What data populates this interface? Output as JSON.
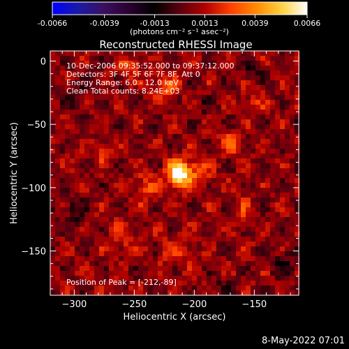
{
  "footer": {
    "timestamp": "8-May-2022 07:01"
  },
  "colorbar": {
    "ticks": [
      "-0.0066",
      "-0.0039",
      "-0.0013",
      "0.0013",
      "0.0039",
      "0.0066"
    ],
    "values": [
      -0.0066,
      -0.0039,
      -0.0013,
      0.0013,
      0.0039,
      0.0066
    ],
    "unit_label": "(photons cm⁻² s⁻¹ asec⁻²)",
    "range": [
      -0.0066,
      0.0066
    ],
    "colors": [
      "#0000ff",
      "#1a1aa8",
      "#3a1060",
      "#2a0030",
      "#000000",
      "#5a0010",
      "#b00000",
      "#ff4000",
      "#ff8a00",
      "#ffd040",
      "#ffffff"
    ]
  },
  "chart_data": {
    "type": "heatmap",
    "title": "Reconstructed RHESSI Image",
    "xlabel": "Heliocentric X (arcsec)",
    "ylabel": "Heliocentric Y (arcsec)",
    "xlim": [
      -320,
      -113
    ],
    "ylim": [
      -185,
      8
    ],
    "xticks": [
      -300,
      -250,
      -200,
      -150
    ],
    "yticks": [
      0,
      -50,
      -100,
      -150
    ],
    "info_lines": [
      "10-Dec-2006 09:35:52.000 to 09:37:12.000",
      "Detectors: 3F 4F 5F 6F 7F 8F, Att 0",
      "Energy Range: 6.0 - 12.0 keV",
      "Clean     Total counts: 8.24E+03"
    ],
    "peak_text": "Position of Peak = [-212,-89]",
    "peak": [
      -212,
      -89
    ],
    "features": [
      {
        "x": -212,
        "y": -89,
        "amp": 0.0066,
        "sx": 7,
        "sy": 7
      },
      {
        "x": -240,
        "y": -100,
        "amp": 0.0016,
        "sx": 7,
        "sy": 9
      },
      {
        "x": -195,
        "y": -85,
        "amp": 0.0018,
        "sx": 6,
        "sy": 9
      },
      {
        "x": -225,
        "y": -20,
        "amp": 0.0022,
        "sx": 8,
        "sy": 6
      },
      {
        "x": -255,
        "y": -5,
        "amp": 0.0018,
        "sx": 7,
        "sy": 5
      },
      {
        "x": -170,
        "y": -65,
        "amp": 0.002,
        "sx": 6,
        "sy": 6
      },
      {
        "x": -275,
        "y": -72,
        "amp": 0.0016,
        "sx": 5,
        "sy": 6
      },
      {
        "x": -260,
        "y": -140,
        "amp": 0.0014,
        "sx": 8,
        "sy": 8
      },
      {
        "x": -215,
        "y": -150,
        "amp": 0.0015,
        "sx": 9,
        "sy": 8
      },
      {
        "x": -160,
        "y": -120,
        "amp": 0.0014,
        "sx": 6,
        "sy": 9
      },
      {
        "x": -150,
        "y": -30,
        "amp": 0.0012,
        "sx": 7,
        "sy": 8
      },
      {
        "x": -300,
        "y": -120,
        "amp": -0.0014,
        "sx": 7,
        "sy": 9
      },
      {
        "x": -300,
        "y": -30,
        "amp": -0.001,
        "sx": 6,
        "sy": 8
      },
      {
        "x": -150,
        "y": -10,
        "amp": -0.0012,
        "sx": 8,
        "sy": 6
      },
      {
        "x": -125,
        "y": -160,
        "amp": -0.0014,
        "sx": 7,
        "sy": 8
      },
      {
        "x": -175,
        "y": -180,
        "amp": -0.0012,
        "sx": 8,
        "sy": 5
      },
      {
        "x": -190,
        "y": -35,
        "amp": -0.0008,
        "sx": 6,
        "sy": 6
      }
    ]
  }
}
